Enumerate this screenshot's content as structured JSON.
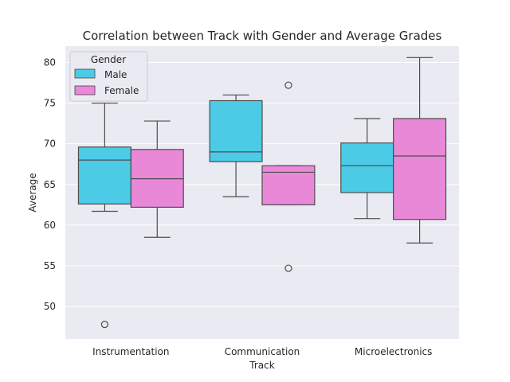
{
  "chart_data": {
    "type": "box",
    "title": "Correlation between Track with Gender and Average Grades",
    "xlabel": "Track",
    "ylabel": "Average",
    "ylim": [
      46,
      82
    ],
    "yticks": [
      50,
      55,
      60,
      65,
      70,
      75,
      80
    ],
    "categories": [
      "Instrumentation",
      "Communication",
      "Microelectronics"
    ],
    "grid": true,
    "legend": {
      "title": "Gender",
      "position": "top-left"
    },
    "series": [
      {
        "name": "Male",
        "color": "#4CCBE6",
        "boxes": [
          {
            "whisker_low": 61.7,
            "q1": 62.6,
            "median": 68.0,
            "q3": 69.6,
            "whisker_high": 75.0,
            "outliers": [
              47.8
            ]
          },
          {
            "whisker_low": 63.5,
            "q1": 67.8,
            "median": 69.0,
            "q3": 75.3,
            "whisker_high": 76.0,
            "outliers": []
          },
          {
            "whisker_low": 60.8,
            "q1": 64.0,
            "median": 67.3,
            "q3": 70.1,
            "whisker_high": 73.1,
            "outliers": []
          }
        ]
      },
      {
        "name": "Female",
        "color": "#EA88D8",
        "boxes": [
          {
            "whisker_low": 58.5,
            "q1": 62.2,
            "median": 65.7,
            "q3": 69.3,
            "whisker_high": 72.8,
            "outliers": []
          },
          {
            "whisker_low": 62.5,
            "q1": 62.5,
            "median": 66.5,
            "q3": 67.3,
            "whisker_high": 67.3,
            "outliers": [
              77.2,
              54.7
            ]
          },
          {
            "whisker_low": 57.8,
            "q1": 60.7,
            "median": 68.5,
            "q3": 73.1,
            "whisker_high": 80.6,
            "outliers": []
          }
        ]
      }
    ]
  }
}
